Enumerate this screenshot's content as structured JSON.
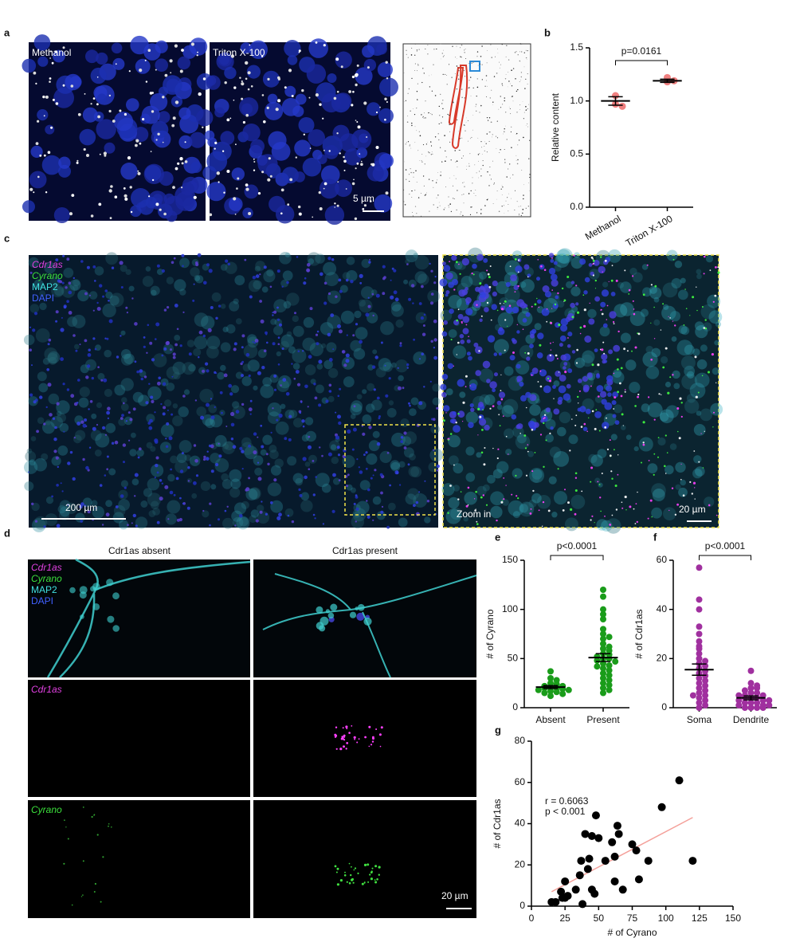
{
  "panel_labels": [
    "a",
    "b",
    "c",
    "d",
    "e",
    "f",
    "g"
  ],
  "panel_a": {
    "images": [
      "Methanol",
      "Triton X-100"
    ],
    "scale_bar": "5 µm"
  },
  "panel_c": {
    "channels": [
      "Cdr1as",
      "Cyrano",
      "MAP2",
      "DAPI"
    ],
    "scale_bar": "200 µm",
    "zoom_label": "Zoom in",
    "zoom_scale_bar": "20 µm"
  },
  "panel_d": {
    "columns": [
      "Cdr1as absent",
      "Cdr1as present"
    ],
    "channels": [
      "Cdr1as",
      "Cyrano",
      "MAP2",
      "DAPI"
    ],
    "row_labels": [
      "Cdr1as",
      "Cyrano"
    ],
    "scale_bar": "20 µm"
  },
  "chart_data": [
    {
      "type": "dot",
      "ylabel": "Relative content",
      "annotation": "p=0.0161",
      "ylim": [
        0,
        1.5
      ],
      "yticks": [
        {
          "value": 0,
          "label": "0.0"
        },
        {
          "value": 0.5,
          "label": "0.5"
        },
        {
          "value": 1,
          "label": "1.0"
        },
        {
          "value": 1.5,
          "label": "1.5"
        }
      ],
      "groups": [
        {
          "name": "Methanol",
          "color": "#f08080",
          "values": [
            1.05,
            0.97,
            0.95
          ],
          "mean": 1.0,
          "sem": 0.04
        },
        {
          "name": "Triton X-100",
          "color": "#f08080",
          "values": [
            1.22,
            1.18,
            1.19
          ],
          "mean": 1.19,
          "sem": 0.015
        }
      ]
    },
    {
      "type": "dot",
      "ylabel": "# of Cyrano",
      "annotation": "p<0.0001",
      "ylim": [
        0,
        150
      ],
      "yticks": [
        0,
        50,
        100,
        150
      ],
      "groups": [
        {
          "name": "Absent",
          "color": "#1a9c1a",
          "values": [
            37,
            30,
            28,
            25,
            24,
            22,
            22,
            21,
            20,
            20,
            19,
            18,
            18,
            17,
            16,
            15,
            14,
            12
          ],
          "mean": 21,
          "sem": 1.5
        },
        {
          "name": "Present",
          "color": "#1a9c1a",
          "values": [
            120,
            113,
            100,
            95,
            90,
            80,
            75,
            72,
            70,
            65,
            62,
            60,
            58,
            55,
            54,
            52,
            50,
            50,
            48,
            47,
            45,
            43,
            42,
            40,
            38,
            35,
            33,
            30,
            28,
            25,
            23,
            20,
            18,
            15
          ],
          "mean": 51,
          "sem": 4
        }
      ]
    },
    {
      "type": "dot",
      "ylabel": "# of Cdr1as",
      "annotation": "p<0.0001",
      "ylim": [
        0,
        60
      ],
      "yticks": [
        0,
        20,
        40,
        60
      ],
      "groups": [
        {
          "name": "Soma",
          "color": "#a0309f",
          "values": [
            57,
            44,
            40,
            33,
            30,
            27,
            25,
            24,
            22,
            20,
            19,
            18,
            17,
            16,
            15,
            14,
            13,
            12,
            11,
            10,
            9,
            8,
            7,
            6,
            5,
            5,
            4,
            3,
            2,
            1,
            0
          ],
          "mean": 15.5,
          "sem": 2.3
        },
        {
          "name": "Dendrite",
          "color": "#a0309f",
          "values": [
            15,
            10,
            9,
            8,
            8,
            7,
            6,
            6,
            5,
            5,
            5,
            4,
            4,
            4,
            3,
            3,
            3,
            2,
            2,
            2,
            1,
            1,
            1,
            0,
            0,
            0,
            0
          ],
          "mean": 4,
          "sem": 0.8
        }
      ]
    },
    {
      "type": "scatter",
      "xlabel": "# of Cyrano",
      "ylabel": "# of Cdr1as",
      "annotations": [
        "r = 0.6063",
        "p < 0.001"
      ],
      "xlim": [
        0,
        150
      ],
      "xticks": [
        0,
        25,
        50,
        75,
        100,
        125,
        150
      ],
      "ylim": [
        0,
        80
      ],
      "yticks": [
        0,
        20,
        40,
        60,
        80
      ],
      "color": "#000000",
      "x": [
        15,
        18,
        22,
        23,
        25,
        25,
        27,
        33,
        36,
        37,
        38,
        40,
        42,
        43,
        45,
        45,
        47,
        48,
        50,
        55,
        60,
        62,
        62,
        64,
        65,
        68,
        75,
        78,
        80,
        87,
        97,
        110,
        120
      ],
      "y": [
        2,
        2,
        7,
        4,
        4,
        12,
        5,
        8,
        15,
        22,
        1,
        35,
        18,
        23,
        34,
        8,
        6,
        44,
        33,
        22,
        31,
        12,
        24,
        39,
        35,
        8,
        30,
        27,
        13,
        22,
        48,
        61,
        22
      ],
      "trendline": {
        "x": [
          15,
          120
        ],
        "y": [
          7,
          43
        ],
        "color": "#f4a09a"
      }
    }
  ]
}
